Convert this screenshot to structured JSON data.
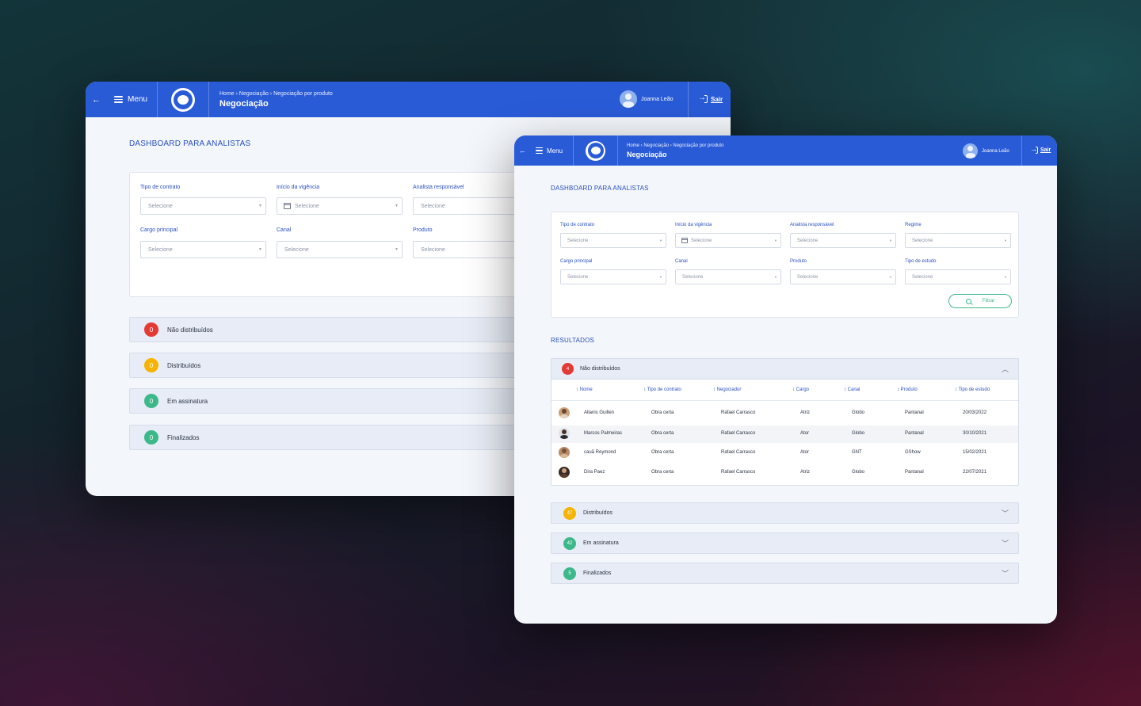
{
  "header": {
    "menu_label": "Menu",
    "breadcrumb": "Home › Negociação › Negociação por produto",
    "page_title": "Negociação",
    "user_name": "Joanna Leão",
    "logout_label": "Sair"
  },
  "dashboard_title": "DASHBOARD PARA ANALISTAS",
  "filters": {
    "tipo_contrato": {
      "label": "Tipo de contrato",
      "placeholder": "Selecione"
    },
    "inicio_vigencia": {
      "label": "Início da vigência",
      "placeholder": "Selecione"
    },
    "analista": {
      "label": "Analista responsável",
      "placeholder": "Selecione"
    },
    "regime": {
      "label": "Regime",
      "placeholder": "Selecione"
    },
    "cargo": {
      "label": "Cargo principal",
      "placeholder": "Selecione"
    },
    "canal": {
      "label": "Canal",
      "placeholder": "Selecione"
    },
    "produto": {
      "label": "Produto",
      "placeholder": "Selecione"
    },
    "tipo_estudo": {
      "label": "Tipo de estudo",
      "placeholder": "Selecione"
    },
    "filter_button": "Filtrar"
  },
  "results_title": "RESULTADOS",
  "back_window": {
    "groups": [
      {
        "count": "0",
        "label": "Não distribuídos",
        "color": "#e53935"
      },
      {
        "count": "0",
        "label": "Distribuídos",
        "color": "#f5b400"
      },
      {
        "count": "0",
        "label": "Em assinatura",
        "color": "#3db88a"
      },
      {
        "count": "0",
        "label": "Finalizados",
        "color": "#3db88a"
      }
    ]
  },
  "front_window": {
    "groups": [
      {
        "count": "4",
        "label": "Não distribuídos",
        "color": "#e53935"
      },
      {
        "count": "47",
        "label": "Distribuídos",
        "color": "#f5b400"
      },
      {
        "count": "42",
        "label": "Em assinatura",
        "color": "#3db88a"
      },
      {
        "count": "5",
        "label": "Finalizados",
        "color": "#3db88a"
      }
    ]
  },
  "table": {
    "columns": [
      "Nome",
      "Tipo de contrato",
      "Negociador",
      "Cargo",
      "Canal",
      "Produto",
      "Tipo de estudo"
    ],
    "rows": [
      [
        "Allanis Guillen",
        "Obra certa",
        "Rafael Carrasco",
        "Atriz",
        "Globo",
        "Pantanal",
        "20/03/2022"
      ],
      [
        "Marcos Palmeiras",
        "Obra certa",
        "Rafael Carrasco",
        "Ator",
        "Globo",
        "Pantanal",
        "30/10/2021"
      ],
      [
        "cauã Reymond",
        "Obra certa",
        "Rafael Carrasco",
        "Ator",
        "GNT",
        "GShow",
        "15/02/2021"
      ],
      [
        "Dira Paez",
        "Obra certa",
        "Rafael Carrasco",
        "Atriz",
        "Globo",
        "Pantanal",
        "22/07/2021"
      ]
    ]
  },
  "colors": {
    "brand_blue": "#2a5bd7",
    "accent_green": "#3db88a",
    "danger": "#e53935",
    "warning": "#f5b400"
  }
}
